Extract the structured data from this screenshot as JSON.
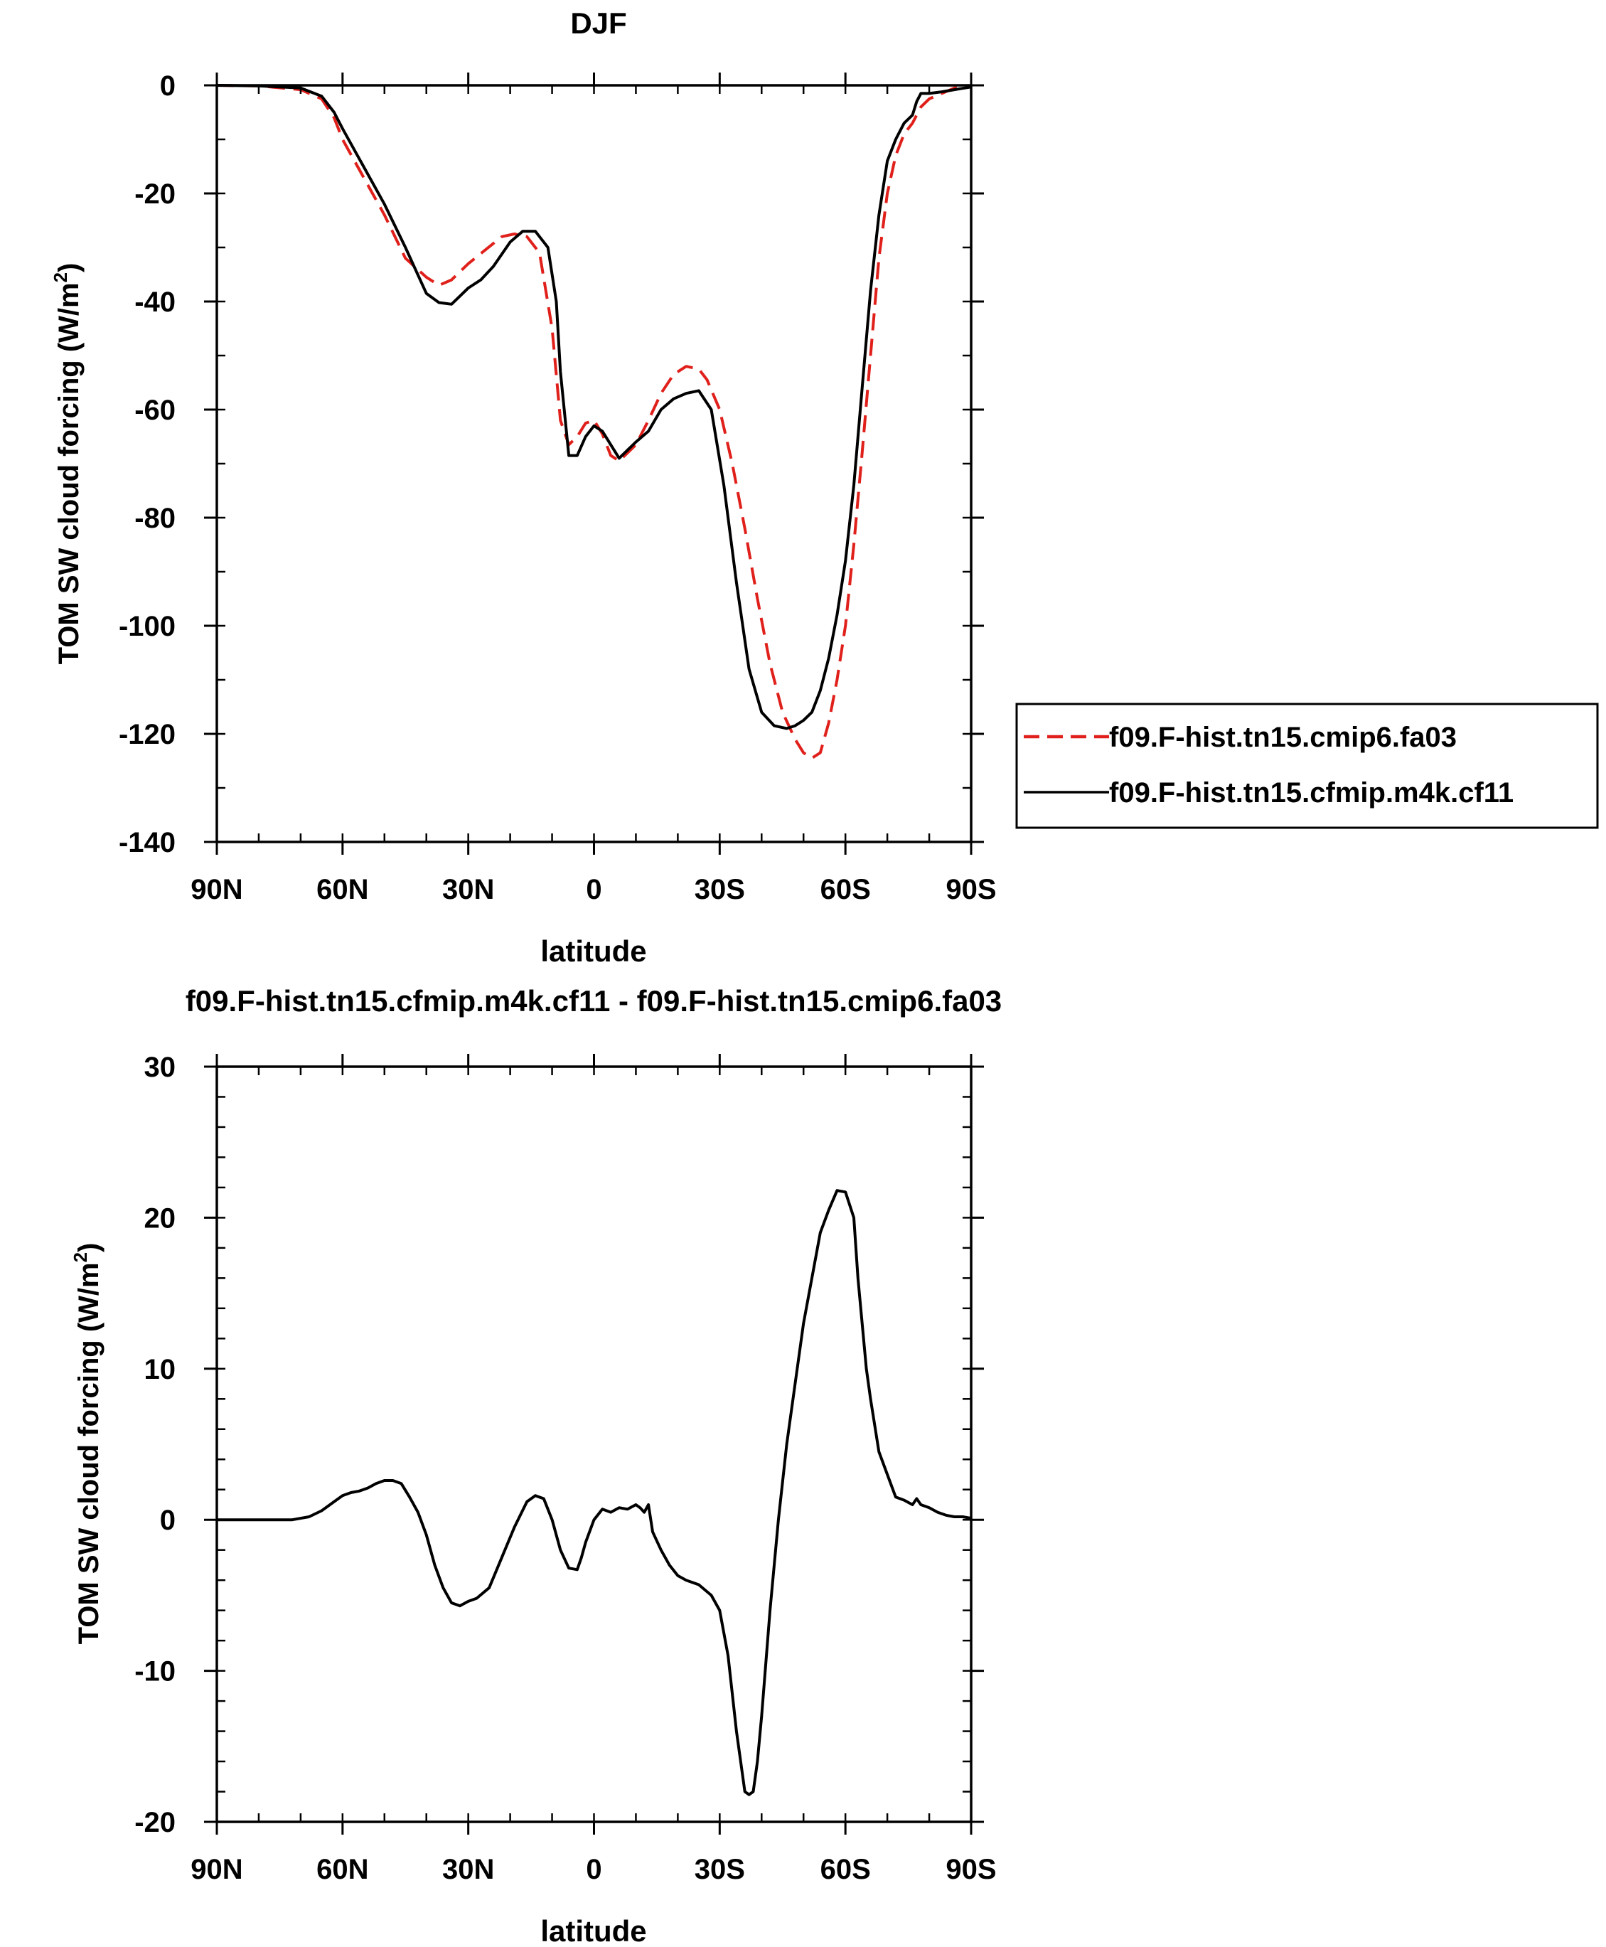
{
  "chart_data": [
    {
      "type": "line",
      "title": "DJF",
      "xlabel": "latitude",
      "ylabel": "TOM SW cloud forcing (W/m",
      "ylabel_sup": "2",
      "ylabel_tail": ")",
      "xlim": [
        90,
        -90
      ],
      "ylim": [
        -140,
        0
      ],
      "xticks": [
        {
          "value": 90,
          "label": "90N"
        },
        {
          "value": 60,
          "label": "60N"
        },
        {
          "value": 30,
          "label": "30N"
        },
        {
          "value": 0,
          "label": "0"
        },
        {
          "value": -30,
          "label": "30S"
        },
        {
          "value": -60,
          "label": "60S"
        },
        {
          "value": -90,
          "label": "90S"
        }
      ],
      "yticks": [
        {
          "value": 0,
          "label": "0"
        },
        {
          "value": -20,
          "label": "-20"
        },
        {
          "value": -40,
          "label": "-40"
        },
        {
          "value": -60,
          "label": "-60"
        },
        {
          "value": -80,
          "label": "-80"
        },
        {
          "value": -100,
          "label": "-100"
        },
        {
          "value": -120,
          "label": "-120"
        },
        {
          "value": -140,
          "label": "-140"
        }
      ],
      "legend_position": "right",
      "series": [
        {
          "name": "f09.F-hist.tn15.cmip6.fa03",
          "color": "#e0201b",
          "style": "dashed",
          "x": [
            90,
            80,
            70,
            65,
            62,
            60,
            55,
            50,
            45,
            40,
            37,
            34,
            30,
            26,
            22,
            19,
            16,
            13,
            10,
            8,
            6,
            4,
            2,
            0,
            -2,
            -4,
            -6,
            -8,
            -10,
            -13,
            -16,
            -19,
            -22,
            -25,
            -27,
            -30,
            -33,
            -36,
            -39,
            -42,
            -45,
            -48,
            -50,
            -52,
            -54,
            -56,
            -58,
            -60,
            -62,
            -64,
            -66,
            -68,
            -70,
            -72,
            -74,
            -76,
            -78,
            -80,
            -83,
            -86,
            -90
          ],
          "y": [
            0,
            -0.1,
            -0.8,
            -2.5,
            -6,
            -10,
            -17,
            -24,
            -32,
            -35.5,
            -37,
            -36,
            -33,
            -30.5,
            -28,
            -27.5,
            -28,
            -31,
            -45,
            -62,
            -66.5,
            -65,
            -62.5,
            -62,
            -64.5,
            -68.5,
            -69.5,
            -68,
            -66.5,
            -62,
            -57,
            -53.5,
            -52,
            -52.5,
            -54.5,
            -60,
            -70,
            -82,
            -95,
            -107,
            -116,
            -121,
            -123.5,
            -124.5,
            -123.5,
            -118,
            -110,
            -100,
            -85,
            -68,
            -50,
            -32,
            -20,
            -13,
            -9,
            -7,
            -4,
            -2.5,
            -1.5,
            -0.5,
            -0.2
          ]
        },
        {
          "name": "f09.F-hist.tn15.cfmip.m4k.cf11",
          "color": "#000000",
          "style": "solid",
          "x": [
            90,
            80,
            70,
            65,
            62,
            60,
            55,
            50,
            45,
            40,
            37,
            34,
            32,
            30,
            27,
            24,
            20,
            17,
            14,
            11,
            9,
            8,
            6,
            4,
            2,
            0,
            -2,
            -4,
            -6,
            -8,
            -10,
            -13,
            -16,
            -19,
            -22,
            -25,
            -28,
            -31,
            -34,
            -37,
            -40,
            -43,
            -46,
            -48,
            -50,
            -52,
            -54,
            -56,
            -58,
            -60,
            -62,
            -64,
            -66,
            -68,
            -70,
            -72,
            -74,
            -76,
            -77,
            -78,
            -80,
            -83,
            -86,
            -90
          ],
          "y": [
            0,
            -0.1,
            -0.5,
            -2,
            -5,
            -8,
            -15,
            -22,
            -30,
            -38.5,
            -40.2,
            -40.5,
            -39,
            -37.5,
            -36,
            -33.5,
            -29,
            -27,
            -27,
            -30,
            -40,
            -53,
            -68.5,
            -68.5,
            -65,
            -63,
            -64,
            -66.5,
            -69,
            -67.5,
            -66,
            -64,
            -60,
            -58,
            -57,
            -56.5,
            -60,
            -74,
            -92,
            -108,
            -116,
            -118.5,
            -119,
            -118.5,
            -117.5,
            -116,
            -112,
            -106,
            -98,
            -88,
            -74,
            -56,
            -38,
            -24,
            -14,
            -10,
            -7,
            -5.5,
            -3,
            -1.5,
            -1.5,
            -1.2,
            -0.8,
            -0.3
          ]
        }
      ]
    },
    {
      "type": "line",
      "title": "f09.F-hist.tn15.cfmip.m4k.cf11 - f09.F-hist.tn15.cmip6.fa03",
      "xlabel": "latitude",
      "ylabel": "TOM SW cloud forcing (W/m",
      "ylabel_sup": "2",
      "ylabel_tail": ")",
      "xlim": [
        90,
        -90
      ],
      "ylim": [
        -20,
        30
      ],
      "xticks": [
        {
          "value": 90,
          "label": "90N"
        },
        {
          "value": 60,
          "label": "60N"
        },
        {
          "value": 30,
          "label": "30N"
        },
        {
          "value": 0,
          "label": "0"
        },
        {
          "value": -30,
          "label": "30S"
        },
        {
          "value": -60,
          "label": "60S"
        },
        {
          "value": -90,
          "label": "90S"
        }
      ],
      "yticks": [
        {
          "value": 30,
          "label": "30"
        },
        {
          "value": 20,
          "label": "20"
        },
        {
          "value": 10,
          "label": "10"
        },
        {
          "value": 0,
          "label": "0"
        },
        {
          "value": -10,
          "label": "-10"
        },
        {
          "value": -20,
          "label": "-20"
        }
      ],
      "series": [
        {
          "color": "#000000",
          "style": "solid",
          "x": [
            90,
            80,
            72,
            68,
            65,
            62,
            60,
            58,
            56,
            54,
            52,
            50,
            48,
            46,
            44,
            42,
            40,
            38,
            36,
            34,
            32,
            30,
            28,
            25,
            22,
            19,
            16,
            14,
            12,
            10,
            8,
            6,
            4,
            3,
            2,
            0,
            -2,
            -4,
            -6,
            -8,
            -10,
            -11,
            -12,
            -13,
            -14,
            -16,
            -18,
            -20,
            -22,
            -25,
            -28,
            -30,
            -32,
            -34,
            -35,
            -36,
            -37,
            -38,
            -39,
            -40,
            -42,
            -44,
            -46,
            -48,
            -50,
            -52,
            -54,
            -56,
            -58,
            -60,
            -62,
            -63,
            -64,
            -65,
            -66,
            -68,
            -70,
            -72,
            -74,
            -76,
            -77,
            -78,
            -80,
            -82,
            -84,
            -86,
            -88,
            -90
          ],
          "y": [
            0,
            0,
            0,
            0.2,
            0.6,
            1.2,
            1.6,
            1.8,
            1.9,
            2.1,
            2.4,
            2.6,
            2.6,
            2.4,
            1.5,
            0.5,
            -1,
            -3,
            -4.5,
            -5.5,
            -5.7,
            -5.4,
            -5.2,
            -4.5,
            -2.5,
            -0.5,
            1.2,
            1.6,
            1.4,
            0,
            -2,
            -3.2,
            -3.3,
            -2.5,
            -1.5,
            0,
            0.7,
            0.5,
            0.8,
            0.7,
            1,
            0.8,
            0.5,
            1,
            -0.8,
            -2,
            -3,
            -3.7,
            -4,
            -4.3,
            -5,
            -6,
            -9,
            -14,
            -16,
            -18,
            -18.2,
            -18,
            -16,
            -13,
            -6,
            0,
            5,
            9,
            13,
            16,
            19,
            20.5,
            21.8,
            21.7,
            20,
            16,
            13,
            10,
            8,
            4.5,
            3,
            1.5,
            1.3,
            1,
            1.4,
            1,
            0.8,
            0.5,
            0.3,
            0.2,
            0.2,
            0.1
          ]
        }
      ]
    }
  ]
}
